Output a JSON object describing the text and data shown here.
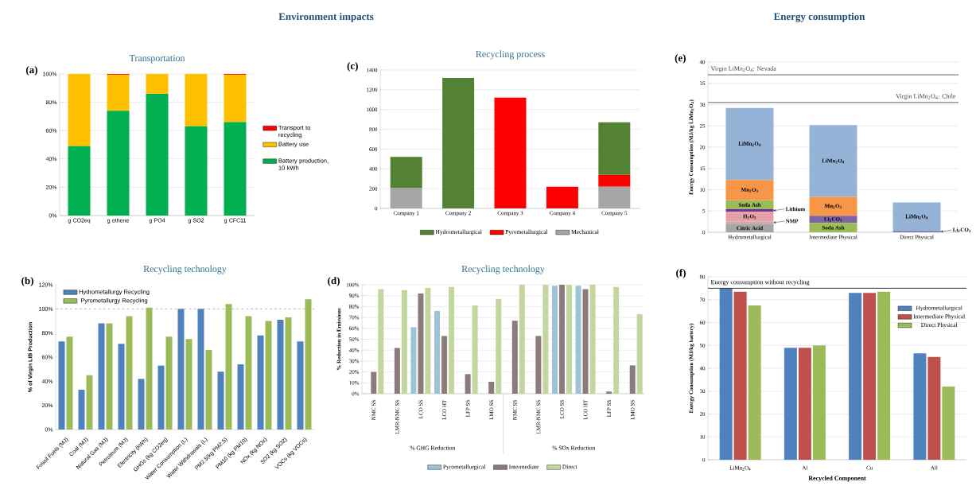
{
  "chart_data": [
    {
      "type": "bar",
      "stacked": true,
      "title": "Transportation",
      "annotations": [
        "(a)",
        "Environment impacts"
      ],
      "categories": [
        "g CO2eq",
        "g ethene",
        "g PO4",
        "g SO2",
        "g CFC11"
      ],
      "series": [
        {
          "name": "Battery production, 10 kWh",
          "color": "#00b050",
          "values": [
            49,
            74,
            86,
            63,
            66
          ]
        },
        {
          "name": "Battery use",
          "color": "#ffc000",
          "values": [
            51,
            25.5,
            14,
            37,
            33.5
          ]
        },
        {
          "name": "Transport to recycling",
          "color": "#ff0000",
          "values": [
            0,
            0.5,
            0,
            0,
            0.5
          ]
        }
      ],
      "ylim": [
        0,
        100
      ],
      "yticks": [
        {
          "value": 0,
          "label": "0%"
        },
        {
          "value": 20,
          "label": "20%"
        },
        {
          "value": 40,
          "label": "40%"
        },
        {
          "value": 60,
          "label": "60%"
        },
        {
          "value": 80,
          "label": "80%"
        },
        {
          "value": 100,
          "label": "100%"
        }
      ],
      "grid": "y",
      "legend": "right"
    },
    {
      "type": "bar",
      "stacked": true,
      "title": "Recycling process",
      "annotations": [
        "(c)"
      ],
      "categories": [
        "Company 1",
        "Company 2",
        "Company 3",
        "Company 4",
        "Company 5"
      ],
      "series": [
        {
          "name": "Mechanical",
          "color": "#a6a6a6",
          "values": [
            210,
            0,
            0,
            0,
            220
          ]
        },
        {
          "name": "Pyrometallurgical",
          "color": "#ff0000",
          "values": [
            0,
            0,
            1120,
            220,
            120
          ]
        },
        {
          "name": "Hydrometallurgical",
          "color": "#548235",
          "values": [
            310,
            1320,
            0,
            0,
            530
          ]
        }
      ],
      "ylim": [
        0,
        1400
      ],
      "yticks": [
        0,
        200,
        400,
        600,
        800,
        1000,
        1200,
        1400
      ],
      "grid": "y",
      "legend": "bottom"
    },
    {
      "type": "bar",
      "stacked": true,
      "annotations": [
        "(e)",
        "Energy consumption"
      ],
      "ylabel": "Energy Consumption (MJ/kg LiMn$_{2}$O$_{4}$)",
      "categories": [
        "Hydrometallurgical",
        "Intermediate Physical",
        "Direct Physical"
      ],
      "series": [
        {
          "name": "Citric Acid",
          "color": "#a6a6a6",
          "values": [
            2,
            0,
            0
          ]
        },
        {
          "name": "NMP",
          "color": "#d9a5a5",
          "values": [
            0.5,
            0,
            0
          ]
        },
        {
          "name": "H$_{2}$O$_{2}$",
          "color": "#e6a0a8",
          "values": [
            2.3,
            0,
            0
          ]
        },
        {
          "name": "Lithium",
          "color": "#7030a0",
          "values": [
            0.6,
            0,
            0
          ]
        },
        {
          "name": "Soda Ash",
          "color": "#9bbb59",
          "values": [
            2.1,
            2.2,
            0
          ]
        },
        {
          "name": "Li$_{2}$CO$_{3}$",
          "color": "#8064a2",
          "values": [
            0,
            1.7,
            0.3
          ]
        },
        {
          "name": "Mn$_{2}$O$_{3}$",
          "color": "#f79646",
          "values": [
            4.8,
            4.4,
            0
          ]
        },
        {
          "name": "LiMn$_{2}$O$_{4}$",
          "color": "#95b3d7",
          "values": [
            16.9,
            16.9,
            6.7
          ]
        }
      ],
      "ylim": [
        0,
        40
      ],
      "yticks": [
        0,
        5,
        10,
        15,
        20,
        25,
        30,
        35,
        40
      ],
      "grid": "y",
      "legend": false,
      "ref_lines": [
        {
          "axis": "y",
          "value": 37,
          "label": "Virgin LiMn$_{2}$O$_{4}$: Nevada",
          "color": "#404040"
        },
        {
          "axis": "y",
          "value": 30.5,
          "label": "Virgin LiMn$_{2}$O$_{4}$: Chile",
          "color": "#404040"
        }
      ]
    },
    {
      "type": "bar",
      "title": "Recycling technology",
      "annotations": [
        "(b)"
      ],
      "ylabel": "% of Virgin LIB Production",
      "categories": [
        "Fossil Fuels (MJ)",
        "Coal (MJ)",
        "Natural Gas (MJ)",
        "Petroleum (MJ)",
        "Electricity (kWh)",
        "GHGs (kg CO2eq)",
        "Water Consumption (L)",
        "Water Withdrawals (L)",
        "PM2.5(kg PM2.5)",
        "PM10 (kg PM10)",
        "NOx (kg NOx)",
        "SO2 (kg SO2)",
        "VOCs (kg VOCs)"
      ],
      "series": [
        {
          "name": "Hydrometallurgy Recycling",
          "color": "#4f81bd",
          "values": [
            73,
            33,
            88,
            71,
            42,
            53,
            100,
            100,
            48,
            54,
            78,
            91,
            73
          ]
        },
        {
          "name": "Pyrometallurgy Recycling",
          "color": "#9bbb59",
          "values": [
            77,
            45,
            88,
            94,
            101,
            77,
            75,
            66,
            104,
            94,
            90,
            93,
            108
          ]
        }
      ],
      "ylim": [
        0,
        120
      ],
      "yticks": [
        {
          "value": 0,
          "label": "0%"
        },
        {
          "value": 20,
          "label": "20%"
        },
        {
          "value": 40,
          "label": "40%"
        },
        {
          "value": 60,
          "label": "60%"
        },
        {
          "value": 80,
          "label": "80%"
        },
        {
          "value": 100,
          "label": "100%"
        },
        {
          "value": 120,
          "label": "120%"
        }
      ],
      "legend": "top left",
      "ref_lines": [
        {
          "axis": "y",
          "value": 100,
          "color": "#a6a6a6",
          "line_style": "dashed"
        }
      ]
    },
    {
      "type": "bar",
      "title": "Recycling technology",
      "annotations": [
        "(d)",
        "% GHG Reduction",
        "% SOx Reduction"
      ],
      "ylabel": "% Reduction in Emissions",
      "categories": [
        "NMC SS",
        "LMR-NMC SS",
        "LCO SS",
        "LCO HT",
        "LFP SS",
        "LMO SS",
        "NMC SS",
        "LMR-NMC SS",
        "LCO SS",
        "LCO HT",
        "LFP SS",
        "LMO SS"
      ],
      "series": [
        {
          "name": "Pyrometallurgical",
          "color": "#9dc3d4",
          "values": [
            null,
            null,
            61,
            76,
            null,
            null,
            null,
            null,
            99,
            99,
            null,
            null
          ]
        },
        {
          "name": "Intermediate",
          "color": "#8c7b7b",
          "values": [
            20,
            42,
            92,
            53,
            18,
            11,
            67,
            53,
            100,
            96,
            2,
            26
          ]
        },
        {
          "name": "Direct",
          "color": "#c4d6a0",
          "values": [
            96,
            95,
            97,
            98,
            81,
            87,
            100,
            100,
            100,
            100,
            98,
            73
          ]
        }
      ],
      "ylim": [
        0,
        100
      ],
      "yticks": [
        {
          "value": 0,
          "label": "0%"
        },
        {
          "value": 10,
          "label": "10%"
        },
        {
          "value": 20,
          "label": "20%"
        },
        {
          "value": 30,
          "label": "30%"
        },
        {
          "value": 40,
          "label": "40%"
        },
        {
          "value": 50,
          "label": "50%"
        },
        {
          "value": 60,
          "label": "60%"
        },
        {
          "value": 70,
          "label": "70%"
        },
        {
          "value": 80,
          "label": "80%"
        },
        {
          "value": 90,
          "label": "90%"
        },
        {
          "value": 100,
          "label": "100%"
        }
      ],
      "grid": "y",
      "legend": "bottom"
    },
    {
      "type": "bar",
      "annotations": [
        "(f)"
      ],
      "xlabel": "Recycled Component",
      "ylabel": "Energy Consumption (MJ/kg battery)",
      "categories": [
        "LiMn$_{2}$O$_{4}$",
        "Al",
        "Cu",
        "All"
      ],
      "series": [
        {
          "name": "Hydrometallurgical",
          "color": "#4f81bd",
          "values": [
            75,
            49,
            73,
            46.5
          ]
        },
        {
          "name": "Intermediate Physical",
          "color": "#c0504d",
          "values": [
            73.5,
            49,
            73,
            45
          ]
        },
        {
          "name": "Direct Physical",
          "color": "#9bbb59",
          "values": [
            67.5,
            50,
            73.5,
            32
          ]
        }
      ],
      "ylim": [
        0,
        80
      ],
      "yticks": [
        0,
        10,
        20,
        30,
        40,
        50,
        60,
        70,
        80
      ],
      "grid": "y",
      "legend": "right",
      "ref_lines": [
        {
          "axis": "y",
          "value": 75,
          "label": "Energy consumption without recycling",
          "color": "#000000"
        }
      ]
    }
  ]
}
